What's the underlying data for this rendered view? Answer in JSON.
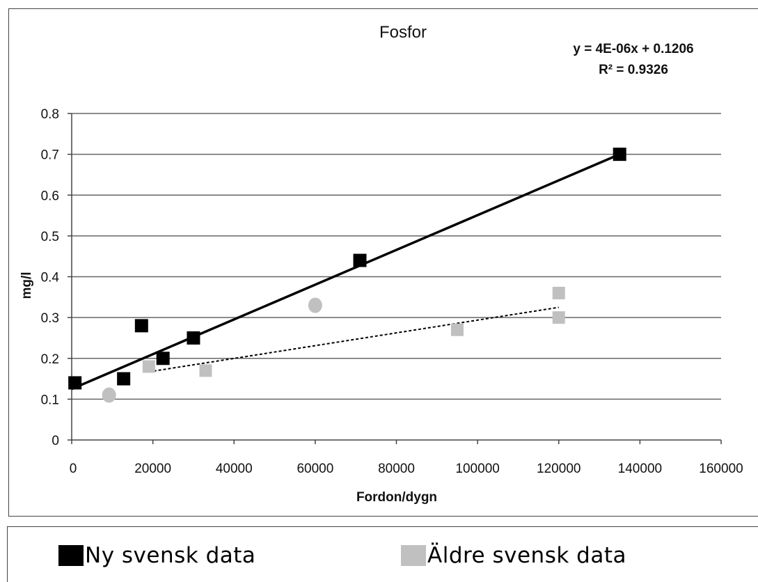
{
  "chart_data": {
    "type": "scatter",
    "title": "Fosfor",
    "xlabel": "Fordon/dygn",
    "ylabel": "mg/l",
    "xlim": [
      0,
      160000
    ],
    "ylim": [
      0,
      0.8
    ],
    "x_ticks": [
      "0",
      "20000",
      "40000",
      "60000",
      "80000",
      "100000",
      "120000",
      "140000",
      "160000"
    ],
    "y_ticks": [
      "0",
      "0.1",
      "0.2",
      "0.3",
      "0.4",
      "0.5",
      "0.6",
      "0.7",
      "0.8"
    ],
    "grid": "horizontal",
    "trendline_equation": "y = 4E-06x + 0.1206",
    "trendline_r2": "R² = 0.9326",
    "series": [
      {
        "name": "Ny svensk data",
        "color": "#000000",
        "marker": "square",
        "points": [
          [
            800,
            0.14
          ],
          [
            12800,
            0.15
          ],
          [
            17200,
            0.28
          ],
          [
            22500,
            0.2
          ],
          [
            30000,
            0.25
          ],
          [
            71000,
            0.44
          ],
          [
            135000,
            0.7
          ]
        ],
        "trendline": {
          "style": "solid",
          "from": [
            0,
            0.125
          ],
          "to": [
            135000,
            0.7
          ]
        }
      },
      {
        "name": "Äldre svensk data",
        "color": "#c0c0c0",
        "marker": "mixed",
        "points": [
          {
            "x": 9200,
            "y": 0.11,
            "marker": "circle"
          },
          {
            "x": 19000,
            "y": 0.18,
            "marker": "square"
          },
          {
            "x": 33000,
            "y": 0.17,
            "marker": "square"
          },
          {
            "x": 60000,
            "y": 0.33,
            "marker": "circle"
          },
          {
            "x": 95000,
            "y": 0.27,
            "marker": "square"
          },
          {
            "x": 120000,
            "y": 0.36,
            "marker": "square"
          },
          {
            "x": 120000,
            "y": 0.3,
            "marker": "square"
          }
        ],
        "trendline": {
          "style": "dashed",
          "from": [
            19000,
            0.167
          ],
          "to": [
            120000,
            0.325
          ]
        }
      }
    ],
    "legend_position": "bottom"
  },
  "legend": {
    "items": [
      {
        "label": "Ny svensk data",
        "color": "#000000"
      },
      {
        "label": "Äldre svensk data",
        "color": "#c0c0c0"
      }
    ]
  }
}
